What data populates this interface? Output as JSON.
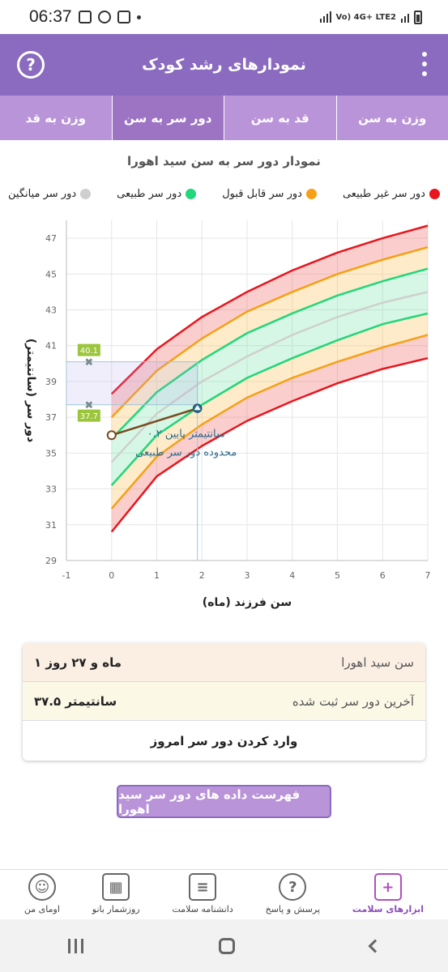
{
  "status_bar": {
    "time": "06:37",
    "network_label": "Vo) 4G+ LTE2"
  },
  "app_bar": {
    "title": "نمودارهای رشد کودک",
    "help_icon": "question-circle-icon",
    "menu_icon": "more-vert-icon"
  },
  "tabs": [
    {
      "label": "وزن به سن",
      "active": false
    },
    {
      "label": "قد به سن",
      "active": false
    },
    {
      "label": "دور سر به سن",
      "active": true
    },
    {
      "label": "وزن به قد",
      "active": false
    }
  ],
  "chart_title": "نمودار دور سر به سن  سید اهورا",
  "legend": [
    {
      "label": "دور سر غیر طبیعی",
      "color": "#e8151e"
    },
    {
      "label": "دور سر قابل قبول",
      "color": "#f5a015"
    },
    {
      "label": "دور سر طبیعی",
      "color": "#22d67a"
    },
    {
      "label": "دور سر میانگین",
      "color": "#cfcfcf"
    }
  ],
  "chart_data": {
    "type": "line",
    "title": "نمودار دور سر به سن  سید اهورا",
    "xlabel": "سن فرزند (ماه)",
    "ylabel": "دور سر (سانتیمتر)",
    "xlim": [
      -1,
      7
    ],
    "ylim": [
      29,
      48
    ],
    "x_ticks": [
      -1,
      0,
      1,
      2,
      3,
      4,
      5,
      6,
      7
    ],
    "y_ticks": [
      29,
      31,
      33,
      35,
      37,
      39,
      41,
      43,
      45,
      47
    ],
    "x": [
      0,
      1,
      2,
      3,
      4,
      5,
      6,
      7
    ],
    "series": [
      {
        "name": "دور سر غیر طبیعی",
        "role": "upper",
        "color": "#e8151e",
        "values": [
          38.3,
          40.8,
          42.6,
          44.0,
          45.2,
          46.2,
          47.0,
          47.7
        ]
      },
      {
        "name": "دور سر قابل قبول",
        "role": "upper",
        "color": "#f5a015",
        "values": [
          37.0,
          39.6,
          41.4,
          42.9,
          44.0,
          45.0,
          45.8,
          46.5
        ]
      },
      {
        "name": "دور سر طبیعی",
        "role": "upper",
        "color": "#22d67a",
        "values": [
          35.8,
          38.4,
          40.2,
          41.7,
          42.8,
          43.8,
          44.6,
          45.3
        ]
      },
      {
        "name": "دور سر میانگین",
        "role": "mean",
        "color": "#cfcfcf",
        "values": [
          34.5,
          37.2,
          39.0,
          40.4,
          41.6,
          42.6,
          43.4,
          44.0
        ]
      },
      {
        "name": "دور سر طبیعی",
        "role": "lower",
        "color": "#22d67a",
        "values": [
          33.2,
          36.0,
          37.7,
          39.2,
          40.3,
          41.3,
          42.2,
          42.8
        ]
      },
      {
        "name": "دور سر قابل قبول",
        "role": "lower",
        "color": "#f5a015",
        "values": [
          31.9,
          34.8,
          36.6,
          38.1,
          39.2,
          40.1,
          40.9,
          41.6
        ]
      },
      {
        "name": "دور سر غیر طبیعی",
        "role": "lower",
        "color": "#e8151e",
        "values": [
          30.6,
          33.7,
          35.4,
          36.8,
          37.9,
          38.9,
          39.7,
          40.3
        ]
      }
    ],
    "child_measurements": [
      {
        "x": 0,
        "y": 36.0
      },
      {
        "x": 1.9,
        "y": 37.5
      }
    ],
    "markers": [
      {
        "label": "40.1",
        "value": 40.1
      },
      {
        "label": "37.7",
        "value": 37.7
      }
    ],
    "annotation": "۰.۲ سانتیمتر پایین\nمحدوده دور سر طبیعی",
    "grid": true,
    "legend_position": "top"
  },
  "info": {
    "age_label": "سن  سید اهورا",
    "age_value": "۱ ماه و ۲۷ روز",
    "last_label": "آخرین دور سر ثبت شده",
    "last_value": "۳۷.۵ سانتیمتر",
    "enter_label": "وارد کردن دور سر امروز"
  },
  "list_button": "فهرست داده های دور سر  سید اهورا",
  "bottom_nav": [
    {
      "label": "ابزارهای سلامت",
      "icon": "health-kit-icon",
      "active": true
    },
    {
      "label": "پرسش و پاسخ",
      "icon": "question-bubble-icon",
      "active": false
    },
    {
      "label": "دانشنامه سلامت",
      "icon": "newspaper-icon",
      "active": false
    },
    {
      "label": "روزشمار بانو",
      "icon": "calendar-icon",
      "active": false
    },
    {
      "label": "اومای من",
      "icon": "user-avatar-icon",
      "active": false
    }
  ]
}
